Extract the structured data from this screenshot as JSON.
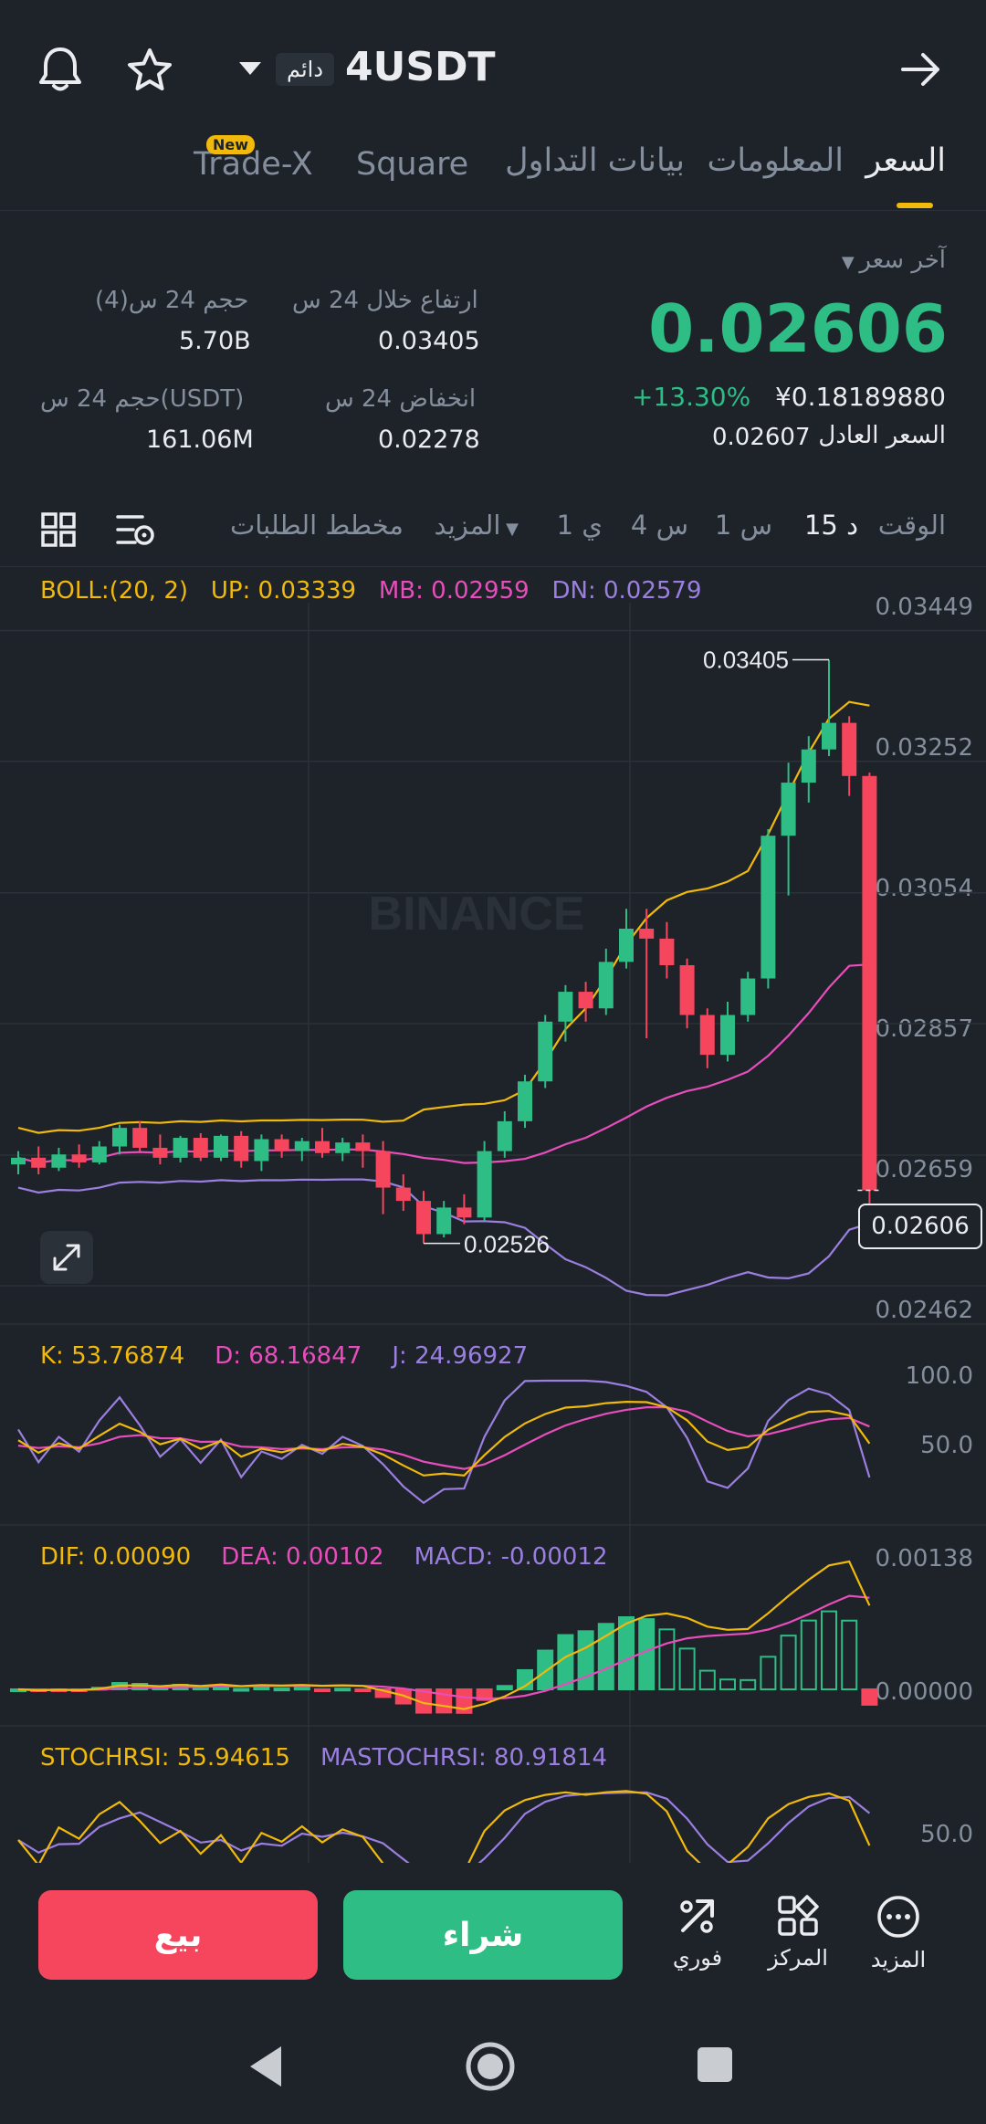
{
  "header": {
    "symbol": "4USDT",
    "badge": "دائم"
  },
  "tabs": [
    {
      "label": "السعر",
      "active": true
    },
    {
      "label": "المعلومات",
      "active": false
    },
    {
      "label": "بيانات التداول",
      "active": false
    },
    {
      "label": "Square",
      "active": false
    },
    {
      "label": "Trade-X",
      "active": false,
      "badge": "New"
    }
  ],
  "price": {
    "last_price_label": "آخر سعر",
    "last_price": "0.02606",
    "change_pct": "+13.30%",
    "fiat": "¥0.18189880",
    "fair_label": "السعر العادل",
    "fair_value": "0.02607"
  },
  "stats": {
    "high_label": "ارتفاع خلال 24 س",
    "high_value": "0.03405",
    "vol4_label": "حجم 24 س(4)",
    "vol4_value": "5.70B",
    "low_label": "انخفاض 24 س",
    "low_value": "0.02278",
    "volusdt_label": "حجم 24 س(USDT)",
    "volusdt_value": "161.06M"
  },
  "toolbar": {
    "time": "الوقت",
    "i15": "15 د",
    "i1h": "1 س",
    "i4h": "4 س",
    "i1d": "1 ي",
    "more": "المزيد",
    "depth": "مخطط الطلبات"
  },
  "boll": {
    "name": "BOLL:(20, 2)",
    "up": "UP: 0.03339",
    "mb": "MB: 0.02959",
    "dn": "DN: 0.02579"
  },
  "kdj": {
    "k": "K: 53.76874",
    "d": "D: 68.16847",
    "j": "J: 24.96927"
  },
  "macd": {
    "dif": "DIF: 0.00090",
    "dea": "DEA: 0.00102",
    "macd": "MACD: -0.00012"
  },
  "stoch": {
    "stochrsi": "STOCHRSI: 55.94615",
    "ma": "MASTOCHRSI: 80.91814"
  },
  "watermark": "BINANCE",
  "colors": {
    "up": "#2ebd85",
    "down": "#f6465d",
    "accent": "#f0b90b",
    "bg": "#1e2329",
    "boll_up": "#f0b90b",
    "boll_mb": "#e84dbc",
    "boll_dn": "#9b7fe0"
  },
  "chart_data": {
    "type": "candlestick",
    "interval": "15m",
    "price_axis": [
      "0.03449",
      "0.03252",
      "0.03054",
      "0.02857",
      "0.02659",
      "0.02462"
    ],
    "ylim": [
      0.02432,
      0.03469
    ],
    "current_price": "0.02606",
    "max_marker": "0.03405",
    "min_marker": "0.02526",
    "candles": [
      {
        "o": 0.02645,
        "h": 0.02665,
        "l": 0.0263,
        "c": 0.02655
      },
      {
        "o": 0.02655,
        "h": 0.02672,
        "l": 0.0263,
        "c": 0.0264
      },
      {
        "o": 0.0264,
        "h": 0.0267,
        "l": 0.02635,
        "c": 0.0266
      },
      {
        "o": 0.0266,
        "h": 0.02675,
        "l": 0.0264,
        "c": 0.02648
      },
      {
        "o": 0.02648,
        "h": 0.0268,
        "l": 0.02645,
        "c": 0.02672
      },
      {
        "o": 0.02672,
        "h": 0.02705,
        "l": 0.0266,
        "c": 0.027
      },
      {
        "o": 0.027,
        "h": 0.0271,
        "l": 0.02665,
        "c": 0.0267
      },
      {
        "o": 0.0267,
        "h": 0.0269,
        "l": 0.02645,
        "c": 0.02655
      },
      {
        "o": 0.02655,
        "h": 0.02688,
        "l": 0.02648,
        "c": 0.02685
      },
      {
        "o": 0.02685,
        "h": 0.02692,
        "l": 0.0265,
        "c": 0.02655
      },
      {
        "o": 0.02655,
        "h": 0.0269,
        "l": 0.0265,
        "c": 0.02688
      },
      {
        "o": 0.02688,
        "h": 0.02695,
        "l": 0.0264,
        "c": 0.0265
      },
      {
        "o": 0.0265,
        "h": 0.0269,
        "l": 0.02635,
        "c": 0.02683
      },
      {
        "o": 0.02683,
        "h": 0.0269,
        "l": 0.02655,
        "c": 0.02665
      },
      {
        "o": 0.02665,
        "h": 0.02685,
        "l": 0.0265,
        "c": 0.0268
      },
      {
        "o": 0.0268,
        "h": 0.027,
        "l": 0.02655,
        "c": 0.02662
      },
      {
        "o": 0.02662,
        "h": 0.02685,
        "l": 0.0265,
        "c": 0.02678
      },
      {
        "o": 0.02678,
        "h": 0.0269,
        "l": 0.0264,
        "c": 0.02665
      },
      {
        "o": 0.02665,
        "h": 0.0268,
        "l": 0.0257,
        "c": 0.0261
      },
      {
        "o": 0.0261,
        "h": 0.0263,
        "l": 0.02575,
        "c": 0.0259
      },
      {
        "o": 0.0259,
        "h": 0.02605,
        "l": 0.02526,
        "c": 0.0254
      },
      {
        "o": 0.0254,
        "h": 0.0259,
        "l": 0.02535,
        "c": 0.0258
      },
      {
        "o": 0.0258,
        "h": 0.026,
        "l": 0.02555,
        "c": 0.02565
      },
      {
        "o": 0.02565,
        "h": 0.0268,
        "l": 0.0256,
        "c": 0.02665
      },
      {
        "o": 0.02665,
        "h": 0.02725,
        "l": 0.02655,
        "c": 0.0271
      },
      {
        "o": 0.0271,
        "h": 0.0278,
        "l": 0.027,
        "c": 0.0277
      },
      {
        "o": 0.0277,
        "h": 0.0287,
        "l": 0.0276,
        "c": 0.0286
      },
      {
        "o": 0.0286,
        "h": 0.02915,
        "l": 0.0283,
        "c": 0.02905
      },
      {
        "o": 0.02905,
        "h": 0.0292,
        "l": 0.0286,
        "c": 0.0288
      },
      {
        "o": 0.0288,
        "h": 0.0297,
        "l": 0.0287,
        "c": 0.0295
      },
      {
        "o": 0.0295,
        "h": 0.0303,
        "l": 0.0294,
        "c": 0.03
      },
      {
        "o": 0.03,
        "h": 0.0303,
        "l": 0.02835,
        "c": 0.02985
      },
      {
        "o": 0.02985,
        "h": 0.0301,
        "l": 0.02925,
        "c": 0.02945
      },
      {
        "o": 0.02945,
        "h": 0.02955,
        "l": 0.0285,
        "c": 0.0287
      },
      {
        "o": 0.0287,
        "h": 0.0288,
        "l": 0.0279,
        "c": 0.0281
      },
      {
        "o": 0.0281,
        "h": 0.0289,
        "l": 0.028,
        "c": 0.0287
      },
      {
        "o": 0.0287,
        "h": 0.02935,
        "l": 0.0286,
        "c": 0.02925
      },
      {
        "o": 0.02925,
        "h": 0.0315,
        "l": 0.0291,
        "c": 0.0314
      },
      {
        "o": 0.0314,
        "h": 0.0325,
        "l": 0.0305,
        "c": 0.0322
      },
      {
        "o": 0.0322,
        "h": 0.0329,
        "l": 0.0319,
        "c": 0.0327
      },
      {
        "o": 0.0327,
        "h": 0.03405,
        "l": 0.0326,
        "c": 0.0331
      },
      {
        "o": 0.0331,
        "h": 0.0332,
        "l": 0.032,
        "c": 0.0323
      },
      {
        "o": 0.0323,
        "h": 0.03235,
        "l": 0.0257,
        "c": 0.02606
      }
    ],
    "kdj_axis": [
      "100.0",
      "50.0"
    ],
    "macd_axis": [
      "0.00138",
      "0.00000"
    ],
    "stoch_axis": [
      "50.0"
    ]
  },
  "bottom": {
    "more": "المزيد",
    "center": "المركز",
    "instant": "فوري",
    "buy": "شراء",
    "sell": "بيع"
  }
}
